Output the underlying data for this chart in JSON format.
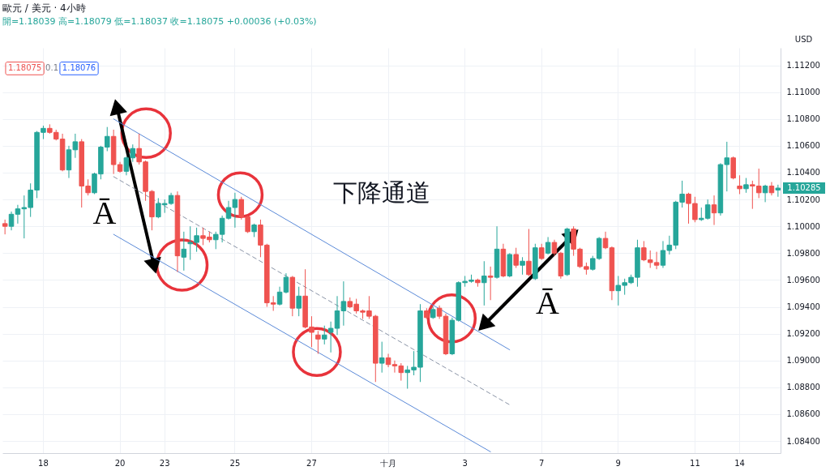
{
  "chart_data": {
    "type": "candlestick",
    "title": "歐元 / 美元 · 4小時",
    "subtitle": "開=1.18039 高=1.18079 低=1.18037 收=1.18075 +0.00036 (+0.03%)",
    "ylabel": "USD",
    "annotations": [
      "1.18075",
      "0.1",
      "1.18076",
      "下降通道",
      "Ā",
      "Ā"
    ],
    "categories": [
      null,
      null,
      null,
      null,
      null,
      null,
      "18",
      null,
      null,
      null,
      null,
      null,
      null,
      null,
      null,
      null,
      null,
      null,
      "20",
      null,
      null,
      null,
      null,
      null,
      null,
      "23",
      null,
      null,
      null,
      null,
      null,
      null,
      null,
      null,
      null,
      null,
      "25",
      null,
      null,
      null,
      null,
      null,
      null,
      null,
      null,
      null,
      null,
      null,
      "27",
      null,
      null,
      null,
      null,
      null,
      null,
      null,
      null,
      null,
      null,
      null,
      "十月",
      null,
      null,
      null,
      null,
      null,
      null,
      null,
      null,
      null,
      null,
      null,
      "3",
      null,
      null,
      null,
      null,
      null,
      null,
      null,
      null,
      null,
      null,
      null,
      "7",
      null,
      null,
      null,
      null,
      null,
      null,
      null,
      null,
      null,
      null,
      null,
      "9",
      null,
      null,
      null,
      null,
      null,
      null,
      null,
      null,
      null,
      null,
      null,
      "11",
      null,
      null,
      null,
      null,
      null,
      null,
      "14",
      null,
      null,
      null,
      null,
      null,
      null
    ],
    "ohlc": [
      [
        1.1002,
        1.1005,
        1.0994,
        1.1
      ],
      [
        1.1,
        1.1011,
        1.0997,
        1.1009
      ],
      [
        1.1009,
        1.1016,
        1.1002,
        1.1013
      ],
      [
        1.1013,
        1.1023,
        1.0991,
        1.1014
      ],
      [
        1.1014,
        1.1032,
        1.1007,
        1.1027
      ],
      [
        1.1027,
        1.1071,
        1.1021,
        1.107
      ],
      [
        1.107,
        1.1075,
        1.1065,
        1.1073
      ],
      [
        1.1073,
        1.1076,
        1.1069,
        1.107
      ],
      [
        1.107,
        1.1072,
        1.1064,
        1.1065
      ],
      [
        1.1065,
        1.1069,
        1.1041,
        1.1042
      ],
      [
        1.1042,
        1.106,
        1.1036,
        1.1057
      ],
      [
        1.1057,
        1.1069,
        1.1051,
        1.1063
      ],
      [
        1.1063,
        1.1065,
        1.1014,
        1.103
      ],
      [
        1.103,
        1.1035,
        1.1023,
        1.1025
      ],
      [
        1.1025,
        1.104,
        1.1024,
        1.1039
      ],
      [
        1.1039,
        1.106,
        1.1035,
        1.1059
      ],
      [
        1.1059,
        1.1074,
        1.1056,
        1.1067
      ],
      [
        1.1067,
        1.1072,
        1.1039,
        1.1046
      ],
      [
        1.1046,
        1.1048,
        1.104,
        1.1041
      ],
      [
        1.1041,
        1.1052,
        1.1038,
        1.1051
      ],
      [
        1.1051,
        1.1061,
        1.1048,
        1.1058
      ],
      [
        1.1058,
        1.1069,
        1.1046,
        1.1048
      ],
      [
        1.1048,
        1.1049,
        1.1019,
        1.1026
      ],
      [
        1.1026,
        1.1027,
        1.0997,
        1.1007
      ],
      [
        1.1007,
        1.1021,
        1.1006,
        1.1017
      ],
      [
        1.1016,
        1.102,
        1.101,
        1.1017
      ],
      [
        1.1017,
        1.1025,
        1.1016,
        1.1023
      ],
      [
        1.1023,
        1.1026,
        1.0966,
        1.0978
      ],
      [
        1.0977,
        1.0996,
        1.0967,
        1.0983
      ],
      [
        1.0987,
        1.1,
        1.0975,
        1.0988
      ],
      [
        1.0988,
        1.0999,
        1.0981,
        1.0993
      ],
      [
        1.0993,
        1.0999,
        1.0986,
        1.0991
      ],
      [
        1.0992,
        1.0996,
        1.0988,
        1.099
      ],
      [
        1.099,
        1.0996,
        1.0983,
        1.0994
      ],
      [
        1.0994,
        1.1008,
        1.0988,
        1.1006
      ],
      [
        1.1006,
        1.1019,
        1.1005,
        1.1014
      ],
      [
        1.1014,
        1.1025,
        1.0999,
        1.102
      ],
      [
        1.102,
        1.1022,
        1.1005,
        1.1007
      ],
      [
        1.1007,
        1.1008,
        1.0995,
        1.0996
      ],
      [
        1.0996,
        1.1002,
        1.0992,
        1.1001
      ],
      [
        1.1001,
        1.1005,
        1.0977,
        1.0986
      ],
      [
        1.0986,
        1.0987,
        1.094,
        1.0943
      ],
      [
        1.0943,
        1.0948,
        1.0937,
        1.0942
      ],
      [
        1.0942,
        1.0955,
        1.0941,
        1.0951
      ],
      [
        1.0951,
        1.0965,
        1.095,
        1.0962
      ],
      [
        1.0962,
        1.0963,
        1.0933,
        1.0939
      ],
      [
        1.0939,
        1.0955,
        1.0933,
        1.0948
      ],
      [
        1.0948,
        1.0968,
        1.0924,
        1.0925
      ],
      [
        1.0925,
        1.0933,
        1.091,
        1.0921
      ],
      [
        1.0919,
        1.0922,
        1.0905,
        1.0916
      ],
      [
        1.0916,
        1.0926,
        1.0912,
        1.0919
      ],
      [
        1.0921,
        1.0929,
        1.0906,
        1.0924
      ],
      [
        1.0924,
        1.0948,
        1.0919,
        1.0937
      ],
      [
        1.0937,
        1.0959,
        1.0926,
        1.0944
      ],
      [
        1.0944,
        1.0947,
        1.0939,
        1.094
      ],
      [
        1.0942,
        1.0946,
        1.0935,
        1.0937
      ],
      [
        1.0937,
        1.0938,
        1.0931,
        1.0936
      ],
      [
        1.0937,
        1.0948,
        1.0931,
        1.0933
      ],
      [
        1.0933,
        1.0934,
        1.0884,
        1.0898
      ],
      [
        1.0898,
        1.0914,
        1.0891,
        1.0902
      ],
      [
        1.0902,
        1.0905,
        1.0895,
        1.0897
      ],
      [
        1.0897,
        1.09,
        1.0891,
        1.0896
      ],
      [
        1.0896,
        1.0898,
        1.0885,
        1.0891
      ],
      [
        1.0891,
        1.0896,
        1.0879,
        1.0893
      ],
      [
        1.0893,
        1.0907,
        1.0889,
        1.0895
      ],
      [
        1.0895,
        1.0942,
        1.0884,
        1.0937
      ],
      [
        1.0937,
        1.0939,
        1.0931,
        1.0932
      ],
      [
        1.0932,
        1.094,
        1.0931,
        1.0938
      ],
      [
        1.0939,
        1.0941,
        1.0931,
        1.0933
      ],
      [
        1.0933,
        1.0935,
        1.0904,
        1.0905
      ],
      [
        1.0905,
        1.0932,
        1.0904,
        1.093
      ],
      [
        1.093,
        1.0959,
        1.0929,
        1.0958
      ],
      [
        1.0958,
        1.0963,
        1.0955,
        1.0959
      ],
      [
        1.0959,
        1.0964,
        1.0958,
        1.096
      ],
      [
        1.096,
        1.0961,
        1.0955,
        1.0958
      ],
      [
        1.0958,
        1.0974,
        1.0941,
        1.0963
      ],
      [
        1.0963,
        1.097,
        1.0945,
        1.0962
      ],
      [
        1.0962,
        1.1,
        1.0961,
        1.0983
      ],
      [
        1.0983,
        1.0987,
        1.0962,
        1.0963
      ],
      [
        1.0963,
        1.098,
        1.0962,
        1.0979
      ],
      [
        1.0979,
        1.0984,
        1.0969,
        1.0971
      ],
      [
        1.0971,
        1.0977,
        1.0964,
        1.0974
      ],
      [
        1.0974,
        1.0998,
        1.0963,
        1.0964
      ],
      [
        1.0961,
        1.0987,
        1.096,
        1.0984
      ],
      [
        1.0984,
        1.0987,
        1.0975,
        1.0976
      ],
      [
        1.098,
        1.0992,
        1.0979,
        1.0988
      ],
      [
        1.0988,
        1.099,
        1.0978,
        1.098
      ],
      [
        1.098,
        1.0981,
        1.0961,
        1.0963
      ],
      [
        1.0964,
        1.0999,
        1.0963,
        1.0998
      ],
      [
        1.0998,
        1.1,
        1.0978,
        1.0983
      ],
      [
        1.0983,
        1.0984,
        1.0969,
        1.097
      ],
      [
        1.097,
        1.0973,
        1.0964,
        1.0968
      ],
      [
        1.0968,
        1.0978,
        1.0967,
        1.0976
      ],
      [
        1.0976,
        1.0992,
        1.0975,
        1.0991
      ],
      [
        1.0991,
        1.0996,
        1.0983,
        1.0984
      ],
      [
        1.0984,
        1.0985,
        1.0945,
        1.0952
      ],
      [
        1.0952,
        1.0963,
        1.0941,
        1.0956
      ],
      [
        1.0956,
        1.0961,
        1.0949,
        1.0958
      ],
      [
        1.0958,
        1.0964,
        1.0957,
        1.0962
      ],
      [
        1.0962,
        1.099,
        1.0955,
        1.0984
      ],
      [
        1.0984,
        1.0989,
        1.0974,
        1.0975
      ],
      [
        1.0975,
        1.0982,
        1.0969,
        1.0973
      ],
      [
        1.0973,
        1.0981,
        1.0968,
        1.0971
      ],
      [
        1.0971,
        1.0989,
        1.0969,
        1.0982
      ],
      [
        1.0982,
        1.0993,
        1.0979,
        1.0986
      ],
      [
        1.0986,
        1.1019,
        1.0983,
        1.1018
      ],
      [
        1.1018,
        1.1034,
        1.1014,
        1.1024
      ],
      [
        1.1024,
        1.1025,
        1.1002,
        1.1017
      ],
      [
        1.1017,
        1.1022,
        1.1003,
        1.1005
      ],
      [
        1.1005,
        1.1014,
        1.1004,
        1.1006
      ],
      [
        1.1006,
        1.102,
        1.1005,
        1.1016
      ],
      [
        1.1016,
        1.1023,
        1.1001,
        1.101
      ],
      [
        1.101,
        1.1047,
        1.1008,
        1.1046
      ],
      [
        1.1046,
        1.1063,
        1.1026,
        1.1051
      ],
      [
        1.1051,
        1.1052,
        1.1035,
        1.1036
      ],
      [
        1.103,
        1.1038,
        1.1024,
        1.1028
      ],
      [
        1.1028,
        1.1036,
        1.1025,
        1.1031
      ],
      [
        1.1031,
        1.1034,
        1.1013,
        1.103
      ],
      [
        1.103,
        1.1043,
        1.1021,
        1.1025
      ],
      [
        1.1025,
        1.1031,
        1.1018,
        1.103
      ],
      [
        1.103,
        1.1033,
        1.1023,
        1.1025
      ],
      [
        1.1027,
        1.1031,
        1.1022,
        1.10285
      ]
    ],
    "colors": [
      "#ef5350",
      "#26a69a",
      "#26a69a",
      "#26a69a",
      "#26a69a",
      "#26a69a",
      "#26a69a",
      "#ef5350",
      "#ef5350",
      "#ef5350",
      "#26a69a",
      "#26a69a",
      "#ef5350",
      "#ef5350",
      "#26a69a",
      "#26a69a",
      "#26a69a",
      "#ef5350",
      "#ef5350",
      "#26a69a",
      "#26a69a",
      "#ef5350",
      "#ef5350",
      "#ef5350",
      "#26a69a",
      "#26a69a",
      "#26a69a",
      "#ef5350",
      "#26a69a",
      "#26a69a",
      "#26a69a",
      "#ef5350",
      "#ef5350",
      "#26a69a",
      "#26a69a",
      "#26a69a",
      "#26a69a",
      "#ef5350",
      "#ef5350",
      "#26a69a",
      "#ef5350",
      "#ef5350",
      "#ef5350",
      "#26a69a",
      "#26a69a",
      "#ef5350",
      "#26a69a",
      "#ef5350",
      "#ef5350",
      "#ef5350",
      "#26a69a",
      "#26a69a",
      "#26a69a",
      "#26a69a",
      "#ef5350",
      "#ef5350",
      "#ef5350",
      "#ef5350",
      "#ef5350",
      "#26a69a",
      "#ef5350",
      "#ef5350",
      "#ef5350",
      "#26a69a",
      "#26a69a",
      "#26a69a",
      "#ef5350",
      "#26a69a",
      "#ef5350",
      "#ef5350",
      "#26a69a",
      "#26a69a",
      "#26a69a",
      "#26a69a",
      "#ef5350",
      "#26a69a",
      "#ef5350",
      "#26a69a",
      "#ef5350",
      "#26a69a",
      "#ef5350",
      "#26a69a",
      "#ef5350",
      "#26a69a",
      "#ef5350",
      "#26a69a",
      "#ef5350",
      "#ef5350",
      "#26a69a",
      "#ef5350",
      "#ef5350",
      "#ef5350",
      "#26a69a",
      "#26a69a",
      "#ef5350",
      "#ef5350",
      "#26a69a",
      "#26a69a",
      "#26a69a",
      "#26a69a",
      "#ef5350",
      "#ef5350",
      "#ef5350",
      "#26a69a",
      "#26a69a",
      "#26a69a",
      "#26a69a",
      "#ef5350",
      "#ef5350",
      "#26a69a",
      "#26a69a",
      "#ef5350",
      "#26a69a",
      "#26a69a",
      "#ef5350",
      "#ef5350",
      "#26a69a",
      "#ef5350",
      "#ef5350",
      "#26a69a",
      "#ef5350",
      "#26a69a"
    ],
    "value_labels": [
      null,
      null,
      null,
      null,
      null,
      null,
      null,
      null,
      null,
      null,
      null,
      null,
      null,
      null,
      null,
      null,
      null,
      null,
      null,
      null,
      null,
      null,
      null,
      null,
      null,
      null,
      null,
      null,
      null,
      null,
      null,
      null,
      null,
      null,
      null,
      null,
      null,
      null,
      null,
      null,
      null,
      null,
      null,
      null,
      null,
      null,
      null,
      null,
      null,
      null,
      null,
      null,
      null,
      null,
      null,
      null,
      null,
      null,
      null,
      null,
      null,
      null,
      null,
      null,
      null,
      null,
      null,
      null,
      null,
      null,
      null,
      null,
      null,
      null,
      null,
      null,
      null,
      null,
      null,
      null,
      null,
      null,
      null,
      null,
      null,
      null,
      null,
      null,
      null,
      null,
      null,
      null,
      null,
      null,
      null,
      null,
      null,
      null,
      null,
      null,
      null,
      null,
      null,
      null,
      null,
      null,
      null,
      null,
      null,
      null,
      null,
      null,
      null,
      null,
      null,
      null,
      null,
      null,
      null,
      null,
      null,
      "1.10285"
    ],
    "series": [
      {
        "type": "line",
        "color": "#5b8ad8",
        "values": [
          null,
          null,
          null,
          null,
          null,
          null,
          null,
          null,
          null,
          null,
          null,
          null,
          null,
          null,
          null,
          null,
          null,
          1.108,
          null,
          null,
          null,
          null,
          null,
          null,
          null,
          null,
          null,
          null,
          null,
          null,
          null,
          null,
          null,
          null,
          null,
          null,
          null,
          null,
          null,
          null,
          null,
          null,
          null,
          null,
          null,
          null,
          null,
          null,
          null,
          null,
          null,
          null,
          null,
          null,
          null,
          null,
          null,
          null,
          null,
          null,
          null,
          null,
          null,
          null,
          null,
          null,
          null,
          null,
          null,
          null,
          null,
          null,
          null,
          null,
          null,
          null,
          null,
          null,
          null,
          1.0908,
          null,
          null,
          null,
          null,
          null,
          null,
          null,
          null,
          null,
          null,
          null,
          null,
          null,
          null,
          null,
          null,
          null,
          null,
          null,
          null,
          null,
          null,
          null,
          null,
          null,
          null,
          null,
          null,
          null,
          null,
          null,
          null,
          null,
          null,
          null,
          null,
          null,
          null,
          null,
          null,
          null,
          null
        ]
      },
      {
        "type": "line",
        "color": "#8a94a6",
        "line_style": "dashed",
        "values": [
          null,
          null,
          null,
          null,
          null,
          null,
          null,
          null,
          null,
          null,
          null,
          null,
          null,
          null,
          null,
          null,
          null,
          1.1037,
          null,
          null,
          null,
          null,
          null,
          null,
          null,
          null,
          null,
          null,
          null,
          null,
          null,
          null,
          null,
          null,
          null,
          null,
          null,
          null,
          null,
          null,
          null,
          null,
          null,
          null,
          null,
          null,
          null,
          null,
          null,
          null,
          null,
          null,
          null,
          null,
          null,
          null,
          null,
          null,
          null,
          null,
          null,
          null,
          null,
          null,
          null,
          null,
          null,
          null,
          null,
          null,
          null,
          null,
          null,
          null,
          null,
          null,
          null,
          null,
          null,
          1.0867,
          null,
          null,
          null,
          null,
          null,
          null,
          null,
          null,
          null,
          null,
          null,
          null,
          null,
          null,
          null,
          null,
          null,
          null,
          null,
          null,
          null,
          null,
          null,
          null,
          null,
          null,
          null,
          null,
          null,
          null,
          null,
          null,
          null,
          null,
          null,
          null,
          null,
          null,
          null,
          null,
          null,
          null
        ]
      },
      {
        "type": "line",
        "color": "#5b8ad8",
        "values": [
          null,
          null,
          null,
          null,
          null,
          null,
          null,
          null,
          null,
          null,
          null,
          null,
          null,
          null,
          null,
          null,
          null,
          1.0994,
          null,
          null,
          null,
          null,
          null,
          null,
          null,
          null,
          null,
          null,
          null,
          null,
          null,
          null,
          null,
          null,
          null,
          null,
          null,
          null,
          null,
          null,
          null,
          null,
          null,
          null,
          null,
          null,
          null,
          null,
          null,
          null,
          null,
          null,
          null,
          null,
          null,
          null,
          null,
          null,
          null,
          null,
          null,
          null,
          null,
          null,
          null,
          null,
          null,
          null,
          null,
          null,
          null,
          null,
          null,
          null,
          null,
          null,
          1.0832,
          null,
          null,
          null,
          null,
          null,
          null,
          null,
          null,
          null,
          null,
          null,
          null,
          null,
          null,
          null,
          null,
          null,
          null,
          null,
          null,
          null,
          null,
          null,
          null,
          null,
          null,
          null,
          null,
          null,
          null,
          null,
          null,
          null,
          null,
          null,
          null,
          null,
          null,
          null,
          null,
          null,
          null,
          null,
          null,
          null
        ]
      }
    ],
    "ylim": [
      1.0831,
      1.1133
    ],
    "yticks": [
      {
        "value": 1.084,
        "label": "1.08400"
      },
      {
        "value": 1.086,
        "label": "1.08600"
      },
      {
        "value": 1.088,
        "label": "1.08800"
      },
      {
        "value": 1.09,
        "label": "1.09000"
      },
      {
        "value": 1.092,
        "label": "1.09200"
      },
      {
        "value": 1.094,
        "label": "1.09400"
      },
      {
        "value": 1.096,
        "label": "1.09600"
      },
      {
        "value": 1.098,
        "label": "1.09800"
      },
      {
        "value": 1.1,
        "label": "1.10000"
      },
      {
        "value": 1.102,
        "label": "1.10200"
      },
      {
        "value": 1.104,
        "label": "1.10400"
      },
      {
        "value": 1.106,
        "label": "1.10600"
      },
      {
        "value": 1.108,
        "label": "1.10800"
      },
      {
        "value": 1.11,
        "label": "1.11000"
      },
      {
        "value": 1.112,
        "label": "1.11200"
      }
    ],
    "grid": true
  }
}
